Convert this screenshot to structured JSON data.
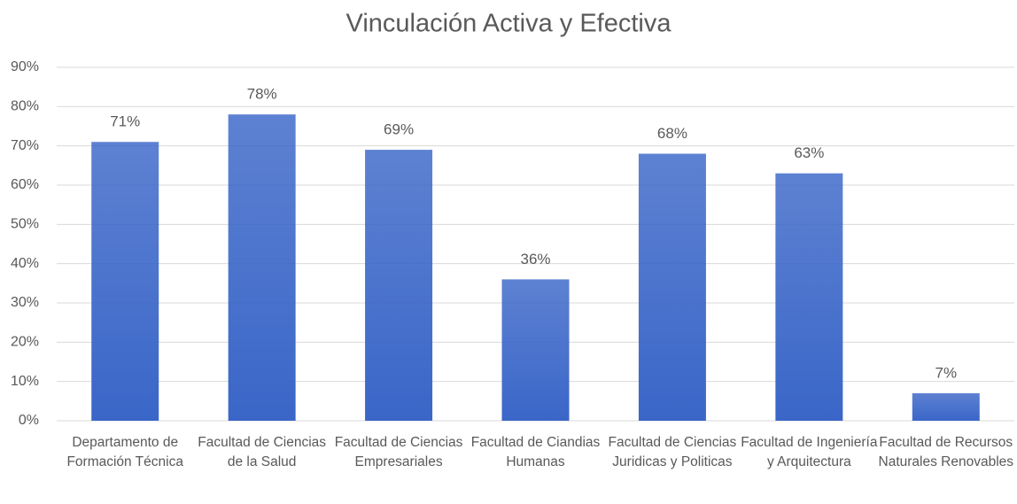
{
  "chart_data": {
    "type": "bar",
    "title": "Vinculación Activa y Efectiva",
    "categories": [
      "Departamento de Formación Técnica",
      "Facultad de Ciencias de la Salud",
      "Facultad de Ciencias Empresariales",
      "Facultad de Ciandias Humanas",
      "Facultad de Ciencias Juridicas y Politicas",
      "Facultad de Ingeniería y Arquitectura",
      "Facultad de Recursos Naturales Renovables"
    ],
    "values": [
      71,
      78,
      69,
      36,
      68,
      63,
      7
    ],
    "value_labels": [
      "71%",
      "78%",
      "69%",
      "36%",
      "68%",
      "63%",
      "7%"
    ],
    "color": "#3a66c8",
    "ylim": [
      0,
      90
    ],
    "yticks": [
      {
        "value": 0,
        "label": "0%"
      },
      {
        "value": 10,
        "label": "10%"
      },
      {
        "value": 20,
        "label": "20%"
      },
      {
        "value": 30,
        "label": "30%"
      },
      {
        "value": 40,
        "label": "40%"
      },
      {
        "value": 50,
        "label": "50%"
      },
      {
        "value": 60,
        "label": "60%"
      },
      {
        "value": 70,
        "label": "70%"
      },
      {
        "value": 80,
        "label": "80%"
      },
      {
        "value": 90,
        "label": "90%"
      }
    ],
    "grid": true
  }
}
